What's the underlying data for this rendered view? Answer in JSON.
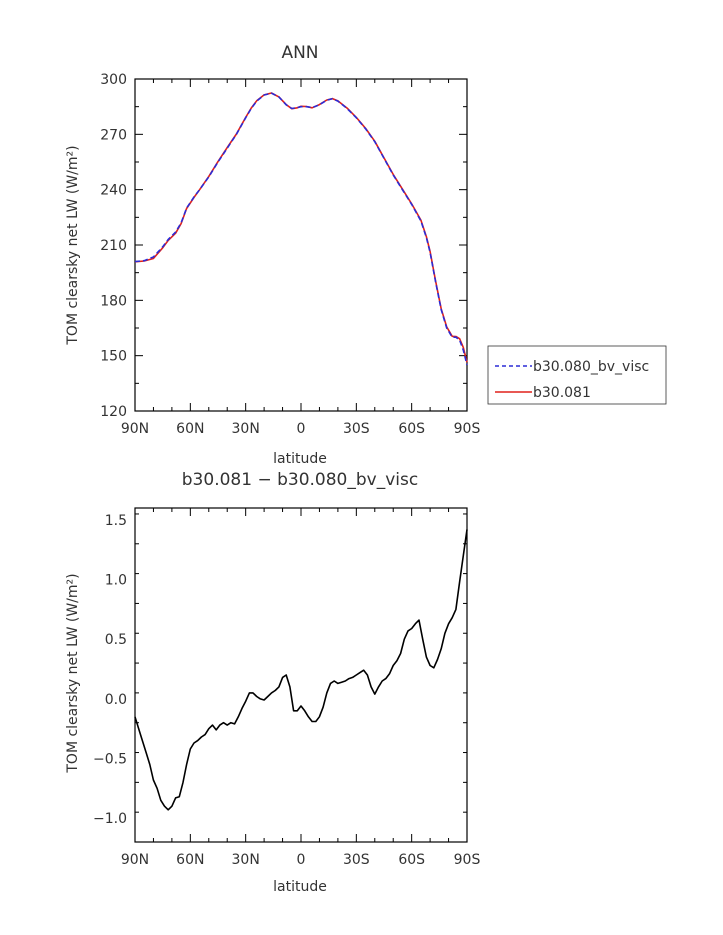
{
  "chart_data": [
    {
      "type": "line",
      "title": "ANN",
      "xlabel": "latitude",
      "ylabel": "TOM clearsky net LW (W/m²)",
      "ylim": [
        120,
        300
      ],
      "xlim": [
        -90,
        90
      ],
      "x_ticks": [
        -90,
        -60,
        -30,
        0,
        30,
        60,
        90
      ],
      "x_tick_labels": [
        "90N",
        "60N",
        "30N",
        "0",
        "30S",
        "60S",
        "90S"
      ],
      "y_ticks": [
        120,
        150,
        180,
        210,
        240,
        270,
        300
      ],
      "y_tick_labels": [
        "120",
        "150",
        "180",
        "210",
        "240",
        "270",
        "300"
      ],
      "legend_position": "right",
      "x": [
        -90,
        -85,
        -80,
        -75,
        -72,
        -68,
        -65,
        -62,
        -58,
        -55,
        -50,
        -45,
        -40,
        -35,
        -30,
        -27,
        -24,
        -20,
        -16,
        -12,
        -8,
        -5,
        -2,
        0,
        3,
        6,
        10,
        14,
        17,
        20,
        25,
        30,
        35,
        40,
        45,
        50,
        55,
        60,
        65,
        68,
        70,
        73,
        76,
        79,
        82,
        84,
        86,
        88,
        90
      ],
      "series": [
        {
          "name": "b30.080_bv_visc",
          "color": "#2b2bd6",
          "dash": true,
          "values": [
            201,
            201.5,
            203.5,
            209,
            213,
            217,
            222,
            230,
            236,
            240,
            247,
            255,
            262.5,
            270,
            279,
            284,
            288,
            291.3,
            292.3,
            290.3,
            286,
            284,
            284.5,
            285,
            285,
            284.5,
            286,
            288.5,
            289.3,
            288,
            284,
            279,
            273,
            266,
            257,
            248,
            240,
            232,
            223,
            214,
            206,
            190,
            175,
            165,
            160,
            160,
            158.5,
            153,
            145
          ]
        },
        {
          "name": "b30.081",
          "color": "#e0211a",
          "dash": false,
          "values": [
            200.9,
            201.3,
            202.7,
            208.5,
            212.5,
            216.4,
            221.6,
            229.8,
            235.8,
            240,
            247.2,
            255.2,
            262.8,
            270.2,
            279.2,
            284.2,
            288.2,
            291.4,
            292.4,
            290.3,
            286.1,
            283.9,
            284.4,
            285.2,
            285.1,
            284.4,
            286.1,
            288.6,
            289.4,
            288.1,
            284.2,
            279.2,
            273.2,
            266.2,
            257.2,
            248.3,
            240.3,
            232.3,
            223.5,
            214.5,
            206.5,
            190.5,
            175.4,
            165.6,
            160.5,
            160.4,
            159.2,
            154.5,
            146.4
          ]
        }
      ]
    },
    {
      "type": "line",
      "title": "b30.081 − b30.080_bv_visc",
      "xlabel": "latitude",
      "ylabel": "TOM clearsky net LW (W/m²)",
      "ylim": [
        -1.2,
        1.6
      ],
      "xlim": [
        -90,
        90
      ],
      "x_ticks": [
        -90,
        -60,
        -30,
        0,
        30,
        60,
        90
      ],
      "x_tick_labels": [
        "90N",
        "60N",
        "30N",
        "0",
        "30S",
        "60S",
        "90S"
      ],
      "y_ticks": [
        -1.0,
        -0.5,
        0.0,
        0.5,
        1.0,
        1.5
      ],
      "y_tick_labels": [
        "−1.0",
        "−0.5",
        "0.0",
        "0.5",
        "1.0",
        "1.5"
      ],
      "x": [
        -90,
        -87,
        -84,
        -82,
        -80,
        -78,
        -76,
        -74,
        -72,
        -70,
        -68,
        -66,
        -64,
        -62,
        -60,
        -58,
        -56,
        -54,
        -52,
        -50,
        -48,
        -46,
        -44,
        -42,
        -40,
        -38,
        -36,
        -34,
        -32,
        -30,
        -28,
        -26,
        -24,
        -22,
        -20,
        -18,
        -16,
        -14,
        -12,
        -10,
        -8,
        -6,
        -4,
        -2,
        0,
        2,
        4,
        6,
        8,
        10,
        12,
        14,
        16,
        18,
        20,
        22,
        24,
        26,
        28,
        30,
        32,
        34,
        36,
        38,
        40,
        42,
        44,
        46,
        48,
        50,
        52,
        54,
        56,
        58,
        60,
        62,
        64,
        66,
        68,
        70,
        72,
        74,
        76,
        78,
        80,
        82,
        84,
        86,
        88,
        90
      ],
      "series": [
        {
          "name": "",
          "color": "#000000",
          "dash": false,
          "values": [
            -0.15,
            -0.3,
            -0.45,
            -0.55,
            -0.68,
            -0.75,
            -0.85,
            -0.9,
            -0.93,
            -0.9,
            -0.83,
            -0.82,
            -0.7,
            -0.55,
            -0.42,
            -0.37,
            -0.35,
            -0.32,
            -0.3,
            -0.25,
            -0.22,
            -0.26,
            -0.22,
            -0.2,
            -0.22,
            -0.2,
            -0.21,
            -0.15,
            -0.08,
            -0.02,
            0.05,
            0.05,
            0.02,
            0.0,
            -0.01,
            0.02,
            0.05,
            0.07,
            0.1,
            0.18,
            0.2,
            0.1,
            -0.1,
            -0.1,
            -0.06,
            -0.1,
            -0.15,
            -0.19,
            -0.19,
            -0.15,
            -0.07,
            0.05,
            0.13,
            0.15,
            0.13,
            0.14,
            0.15,
            0.17,
            0.18,
            0.2,
            0.22,
            0.24,
            0.2,
            0.1,
            0.04,
            0.1,
            0.15,
            0.17,
            0.21,
            0.28,
            0.32,
            0.38,
            0.5,
            0.57,
            0.59,
            0.63,
            0.66,
            0.5,
            0.35,
            0.28,
            0.26,
            0.33,
            0.42,
            0.55,
            0.63,
            0.68,
            0.75,
            0.98,
            1.2,
            1.42
          ]
        }
      ]
    }
  ]
}
